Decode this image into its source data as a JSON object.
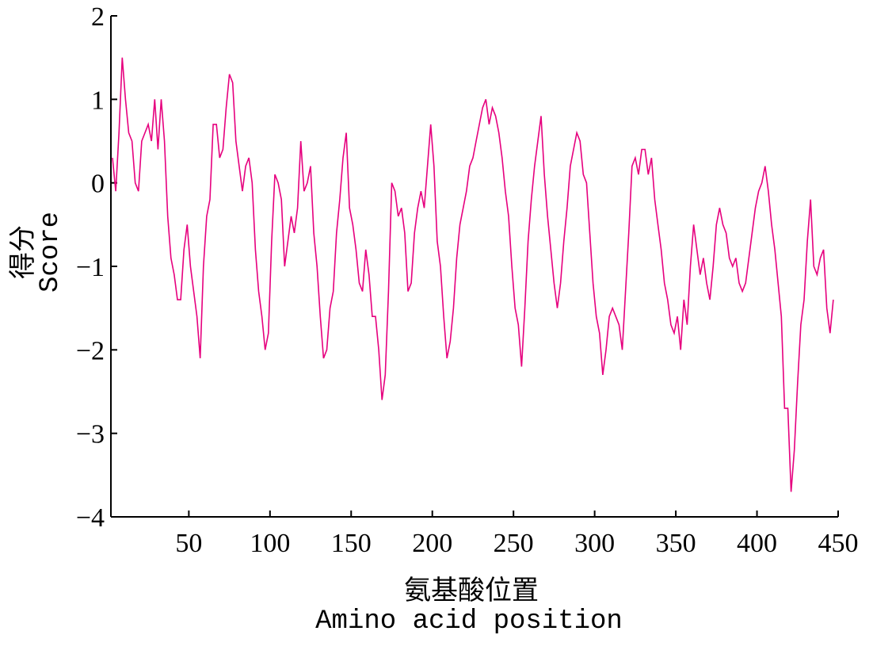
{
  "chart_data": {
    "type": "line",
    "xlabel": [
      "氨基酸位置",
      "Amino acid position"
    ],
    "ylabel": [
      "得分",
      "Score"
    ],
    "xlim": [
      2,
      450
    ],
    "ylim": [
      -4,
      2
    ],
    "xticks": [
      50,
      100,
      150,
      200,
      250,
      300,
      350,
      400,
      450
    ],
    "yticks": [
      {
        "value": -4,
        "label": "−4"
      },
      {
        "value": -3,
        "label": "−3"
      },
      {
        "value": -2,
        "label": "−2"
      },
      {
        "value": -1,
        "label": "−1"
      },
      0,
      1,
      2
    ],
    "x": [
      3,
      5,
      7,
      9,
      11,
      13,
      15,
      17,
      19,
      21,
      23,
      25,
      27,
      29,
      31,
      33,
      35,
      37,
      39,
      41,
      43,
      45,
      47,
      49,
      51,
      53,
      55,
      57,
      59,
      61,
      63,
      65,
      67,
      69,
      71,
      73,
      75,
      77,
      79,
      81,
      83,
      85,
      87,
      89,
      91,
      93,
      95,
      97,
      99,
      101,
      103,
      105,
      107,
      109,
      111,
      113,
      115,
      117,
      119,
      121,
      123,
      125,
      127,
      129,
      131,
      133,
      135,
      137,
      139,
      141,
      143,
      145,
      147,
      149,
      151,
      153,
      155,
      157,
      159,
      161,
      163,
      165,
      167,
      169,
      171,
      173,
      175,
      177,
      179,
      181,
      183,
      185,
      187,
      189,
      191,
      193,
      195,
      197,
      199,
      201,
      203,
      205,
      207,
      209,
      211,
      213,
      215,
      217,
      219,
      221,
      223,
      225,
      227,
      229,
      231,
      233,
      235,
      237,
      239,
      241,
      243,
      245,
      247,
      249,
      251,
      253,
      255,
      257,
      259,
      261,
      263,
      265,
      267,
      269,
      271,
      273,
      275,
      277,
      279,
      281,
      283,
      285,
      287,
      289,
      291,
      293,
      295,
      297,
      299,
      301,
      303,
      305,
      307,
      309,
      311,
      313,
      315,
      317,
      319,
      321,
      323,
      325,
      327,
      329,
      331,
      333,
      335,
      337,
      339,
      341,
      343,
      345,
      347,
      349,
      351,
      353,
      355,
      357,
      359,
      361,
      363,
      365,
      367,
      369,
      371,
      373,
      375,
      377,
      379,
      381,
      383,
      385,
      387,
      389,
      391,
      393,
      395,
      397,
      399,
      401,
      403,
      405,
      407,
      409,
      411,
      413,
      415,
      417,
      419,
      421,
      423,
      425,
      427,
      429,
      431,
      433,
      435,
      437,
      439,
      441,
      443,
      445,
      447
    ],
    "series": [
      {
        "color": "#e6007e",
        "values": [
          0.3,
          -0.1,
          0.6,
          1.5,
          1.0,
          0.6,
          0.5,
          0.0,
          -0.1,
          0.5,
          0.6,
          0.7,
          0.5,
          1.0,
          0.4,
          1.0,
          0.5,
          -0.4,
          -0.9,
          -1.1,
          -1.4,
          -1.4,
          -0.8,
          -0.5,
          -1.0,
          -1.3,
          -1.6,
          -2.1,
          -1.0,
          -0.4,
          -0.2,
          0.7,
          0.7,
          0.3,
          0.4,
          0.9,
          1.3,
          1.2,
          0.5,
          0.2,
          -0.1,
          0.2,
          0.3,
          0.0,
          -0.8,
          -1.3,
          -1.6,
          -2.0,
          -1.8,
          -0.7,
          0.1,
          0.0,
          -0.2,
          -1.0,
          -0.7,
          -0.4,
          -0.6,
          -0.3,
          0.5,
          -0.1,
          0.0,
          0.2,
          -0.6,
          -1.0,
          -1.6,
          -2.1,
          -2.0,
          -1.5,
          -1.3,
          -0.6,
          -0.2,
          0.3,
          0.6,
          -0.3,
          -0.5,
          -0.8,
          -1.2,
          -1.3,
          -0.8,
          -1.1,
          -1.6,
          -1.6,
          -2.0,
          -2.6,
          -2.3,
          -1.3,
          0.0,
          -0.1,
          -0.4,
          -0.3,
          -0.6,
          -1.3,
          -1.2,
          -0.6,
          -0.3,
          -0.1,
          -0.3,
          0.2,
          0.7,
          0.2,
          -0.7,
          -1.0,
          -1.6,
          -2.1,
          -1.9,
          -1.5,
          -0.9,
          -0.5,
          -0.3,
          -0.1,
          0.2,
          0.3,
          0.5,
          0.7,
          0.9,
          1.0,
          0.7,
          0.9,
          0.8,
          0.6,
          0.3,
          -0.1,
          -0.4,
          -1.0,
          -1.5,
          -1.7,
          -2.2,
          -1.5,
          -0.7,
          -0.2,
          0.2,
          0.5,
          0.8,
          0.1,
          -0.4,
          -0.8,
          -1.2,
          -1.5,
          -1.2,
          -0.7,
          -0.3,
          0.2,
          0.4,
          0.6,
          0.5,
          0.1,
          0.0,
          -0.6,
          -1.2,
          -1.6,
          -1.8,
          -2.3,
          -2.0,
          -1.6,
          -1.5,
          -1.6,
          -1.7,
          -2.0,
          -1.3,
          -0.6,
          0.2,
          0.3,
          0.1,
          0.4,
          0.4,
          0.1,
          0.3,
          -0.2,
          -0.5,
          -0.8,
          -1.2,
          -1.4,
          -1.7,
          -1.8,
          -1.6,
          -2.0,
          -1.4,
          -1.7,
          -1.0,
          -0.5,
          -0.8,
          -1.1,
          -0.9,
          -1.2,
          -1.4,
          -1.0,
          -0.5,
          -0.3,
          -0.5,
          -0.6,
          -0.9,
          -1.0,
          -0.9,
          -1.2,
          -1.3,
          -1.2,
          -0.9,
          -0.6,
          -0.3,
          -0.1,
          0.0,
          0.2,
          -0.1,
          -0.5,
          -0.8,
          -1.2,
          -1.6,
          -2.7,
          -2.7,
          -3.7,
          -3.2,
          -2.4,
          -1.7,
          -1.4,
          -0.7,
          -0.2,
          -1.0,
          -1.1,
          -0.9,
          -0.8,
          -1.5,
          -1.8,
          -1.4
        ]
      }
    ]
  }
}
